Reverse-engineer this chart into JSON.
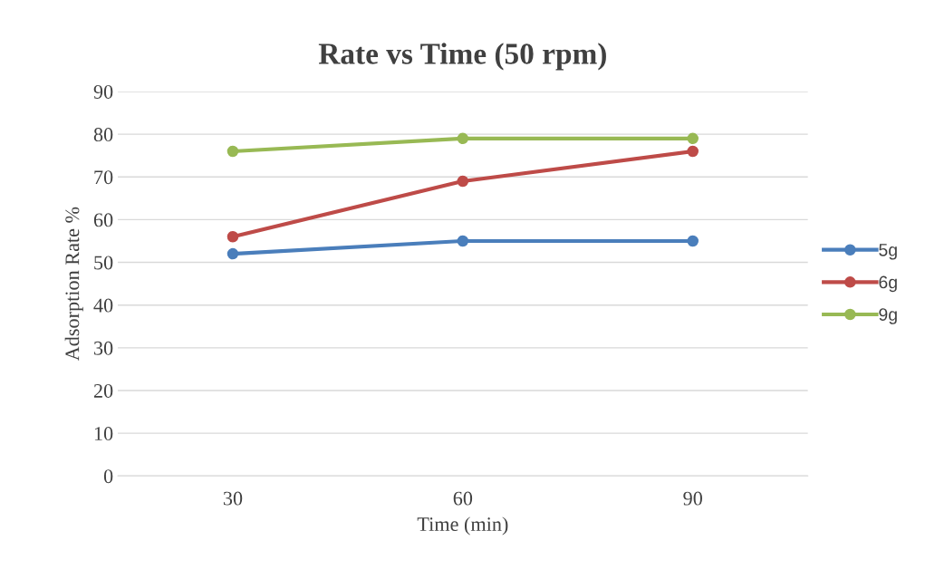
{
  "chart_data": {
    "type": "line",
    "title": "Rate vs Time (50 rpm)",
    "xlabel": "Time (min)",
    "ylabel": "Adsorption Rate %",
    "categories": [
      "30",
      "60",
      "90"
    ],
    "series": [
      {
        "name": "5g",
        "color": "#4a7ebb",
        "values": [
          52,
          55,
          55
        ]
      },
      {
        "name": "6g",
        "color": "#be4b48",
        "values": [
          56,
          69,
          76
        ]
      },
      {
        "name": "9g",
        "color": "#98b954",
        "values": [
          76,
          79,
          79
        ]
      }
    ],
    "ylim": [
      0,
      90
    ],
    "yticks": [
      0,
      10,
      20,
      30,
      40,
      50,
      60,
      70,
      80,
      90
    ],
    "grid": "y",
    "legend": "right",
    "marker": "circle",
    "line_style": "solid"
  }
}
